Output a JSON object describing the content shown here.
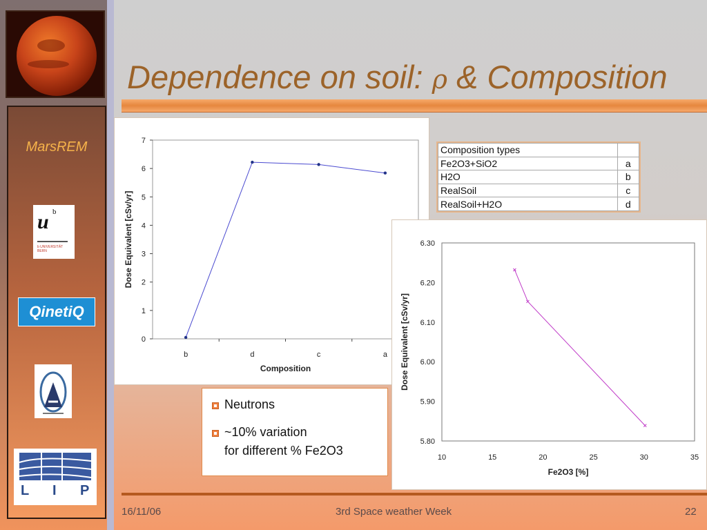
{
  "slide": {
    "title_prefix": "Dependence on soil:",
    "title_symbol": "ρ",
    "title_suffix": "& Composition",
    "project_name": "MarsREM",
    "footer": {
      "date": "16/11/06",
      "event": "3rd Space weather Week",
      "page": "22"
    }
  },
  "logos": {
    "unibern_mark": "u",
    "unibern_super": "b",
    "unibern_text": "b UNIVERSITÄT BERN",
    "qinetiq": "QinetiQ",
    "lip_letters": [
      "L",
      "I",
      "P"
    ]
  },
  "composition_table": {
    "header": [
      "Composition types",
      ""
    ],
    "rows": [
      [
        "Fe2O3+SiO2",
        "a"
      ],
      [
        "H2O",
        "b"
      ],
      [
        "RealSoil",
        "c"
      ],
      [
        "RealSoil+H2O",
        "d"
      ]
    ]
  },
  "notes": {
    "line1": "Neutrons",
    "line2a": "~10%  variation",
    "line2b": "for different % Fe2O3"
  },
  "chart_data": [
    {
      "type": "line",
      "categories": [
        "b",
        "d",
        "c",
        "a"
      ],
      "values": [
        0.05,
        6.22,
        6.14,
        5.84
      ],
      "xlabel": "Composition",
      "ylabel": "Dose Equivalent [cSv/yr]",
      "ylim": [
        0,
        7
      ],
      "yticks": [
        "0",
        "1",
        "2",
        "3",
        "4",
        "5",
        "6",
        "7"
      ],
      "grid": false,
      "color": "#4a4ad0"
    },
    {
      "type": "line",
      "x": [
        17.2,
        18.5,
        30.1
      ],
      "y": [
        6.232,
        6.152,
        5.839
      ],
      "xlabel": "Fe2O3 [%]",
      "ylabel": "Dose Equivalent [cSv/yr]",
      "xlim": [
        10,
        35
      ],
      "ylim": [
        5.8,
        6.3
      ],
      "xticks": [
        "10",
        "15",
        "20",
        "25",
        "30",
        "35"
      ],
      "yticks": [
        "5.80",
        "5.90",
        "6.00",
        "6.10",
        "6.20",
        "6.30"
      ],
      "grid": false,
      "color": "#c03cc8"
    }
  ]
}
